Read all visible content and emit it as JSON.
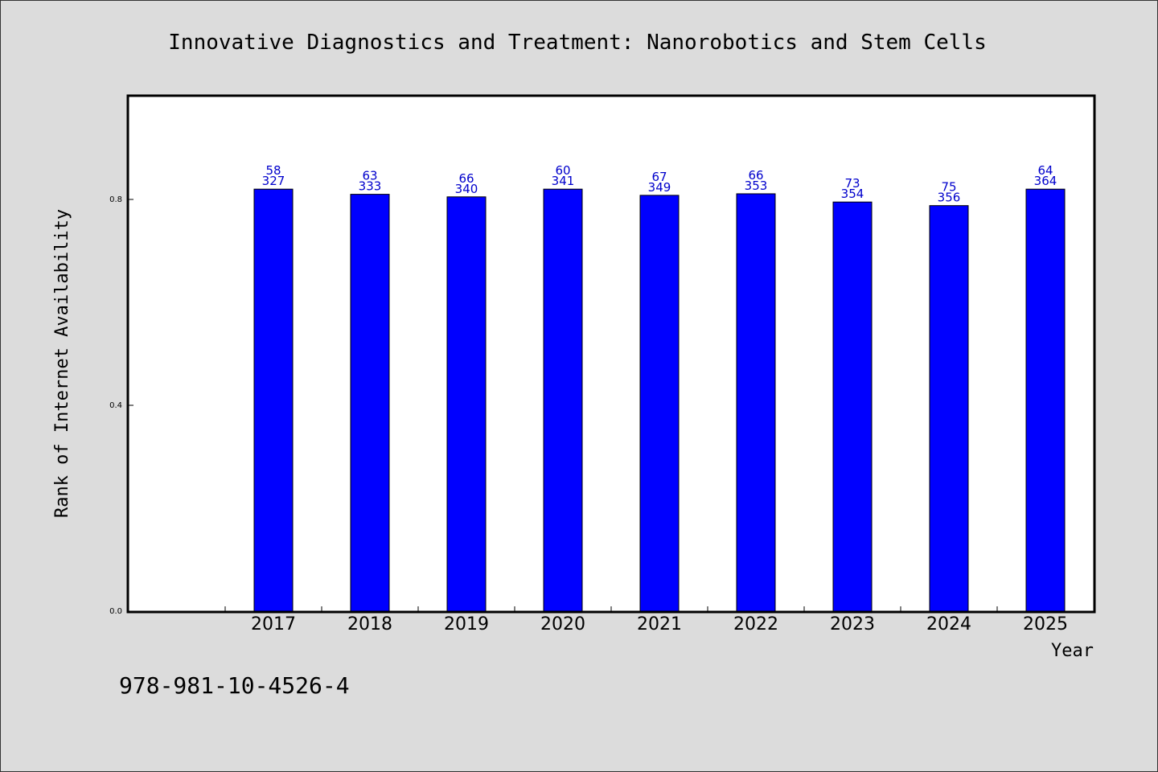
{
  "chart_data": {
    "type": "bar",
    "title": "Innovative Diagnostics and Treatment: Nanorobotics and Stem Cells",
    "xlabel": "Year",
    "ylabel": "Rank of Internet Availability",
    "categories": [
      "2017",
      "2018",
      "2019",
      "2020",
      "2021",
      "2022",
      "2023",
      "2024",
      "2025"
    ],
    "values": [
      0.82,
      0.81,
      0.805,
      0.82,
      0.808,
      0.811,
      0.795,
      0.788,
      0.82
    ],
    "labels_top": [
      "58",
      "63",
      "66",
      "60",
      "67",
      "66",
      "73",
      "75",
      "64"
    ],
    "labels_bottom": [
      "327",
      "333",
      "340",
      "341",
      "349",
      "353",
      "354",
      "356",
      "364"
    ],
    "yticks": [
      "0.0",
      "0.4",
      "0.8"
    ],
    "ylim": [
      0,
      1.0
    ],
    "grid": false,
    "colors": {
      "bar": "#0000ff",
      "data_label": "#0000cc",
      "background": "#dcdcdc",
      "plot_background": "#ffffff"
    }
  },
  "footer": {
    "isbn": "978-981-10-4526-4"
  }
}
